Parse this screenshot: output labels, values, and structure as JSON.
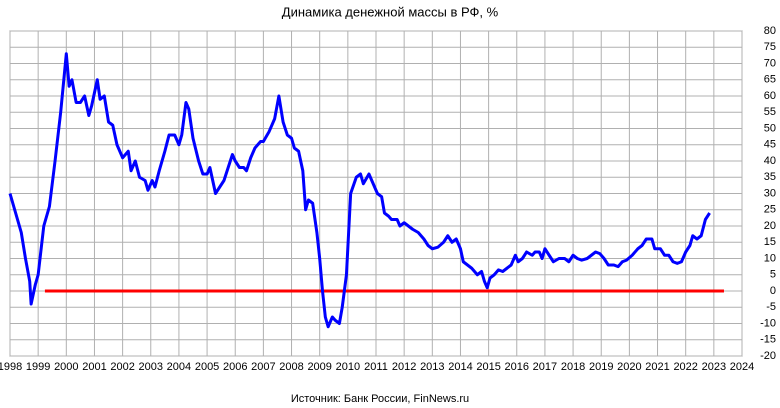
{
  "chart_data": {
    "type": "line",
    "title": "Динамика  денежной  массы в РФ, %",
    "source": "Источник:  Банк России, FinNews.ru",
    "x": [
      1998.0,
      1998.2,
      1998.4,
      1998.55,
      1998.7,
      1998.75,
      1998.9,
      1999.0,
      1999.2,
      1999.4,
      1999.6,
      1999.8,
      2000.0,
      2000.1,
      2000.2,
      2000.35,
      2000.5,
      2000.65,
      2000.8,
      2000.9,
      2001.1,
      2001.2,
      2001.35,
      2001.5,
      2001.65,
      2001.8,
      2002.0,
      2002.2,
      2002.3,
      2002.45,
      2002.6,
      2002.8,
      2002.9,
      2003.05,
      2003.15,
      2003.3,
      2003.5,
      2003.65,
      2003.85,
      2004.0,
      2004.1,
      2004.25,
      2004.35,
      2004.5,
      2004.7,
      2004.85,
      2005.0,
      2005.1,
      2005.2,
      2005.3,
      2005.45,
      2005.6,
      2005.75,
      2005.9,
      2006.0,
      2006.15,
      2006.3,
      2006.4,
      2006.55,
      2006.7,
      2006.9,
      2007.0,
      2007.2,
      2007.4,
      2007.55,
      2007.7,
      2007.85,
      2008.0,
      2008.1,
      2008.25,
      2008.4,
      2008.5,
      2008.6,
      2008.75,
      2008.9,
      2009.0,
      2009.1,
      2009.2,
      2009.3,
      2009.45,
      2009.55,
      2009.7,
      2009.8,
      2009.95,
      2010.1,
      2010.3,
      2010.45,
      2010.55,
      2010.75,
      2010.9,
      2011.05,
      2011.2,
      2011.3,
      2011.45,
      2011.55,
      2011.75,
      2011.85,
      2012.0,
      2012.15,
      2012.3,
      2012.5,
      2012.7,
      2012.85,
      2013.0,
      2013.2,
      2013.4,
      2013.55,
      2013.7,
      2013.85,
      2014.0,
      2014.1,
      2014.25,
      2014.4,
      2014.6,
      2014.75,
      2014.85,
      2014.95,
      2015.05,
      2015.2,
      2015.35,
      2015.5,
      2015.65,
      2015.8,
      2015.95,
      2016.05,
      2016.2,
      2016.35,
      2016.55,
      2016.65,
      2016.8,
      2016.9,
      2017.0,
      2017.15,
      2017.3,
      2017.5,
      2017.7,
      2017.85,
      2018.0,
      2018.15,
      2018.3,
      2018.5,
      2018.65,
      2018.8,
      2018.95,
      2019.1,
      2019.25,
      2019.45,
      2019.6,
      2019.75,
      2019.9,
      2020.1,
      2020.3,
      2020.45,
      2020.6,
      2020.8,
      2020.9,
      2021.1,
      2021.25,
      2021.4,
      2021.55,
      2021.7,
      2021.85,
      2022.0,
      2022.15,
      2022.25,
      2022.4,
      2022.55,
      2022.7,
      2022.85
    ],
    "values": [
      30,
      24,
      18,
      10,
      3,
      -4,
      2,
      5,
      20,
      26,
      40,
      55,
      73,
      63,
      65,
      58,
      58,
      60,
      54,
      57,
      65,
      59,
      60,
      52,
      51,
      45,
      41,
      43,
      37,
      40,
      35,
      34,
      31,
      34,
      32,
      37,
      43,
      48,
      48,
      45,
      48,
      58,
      56,
      47,
      40,
      36,
      36,
      38,
      34,
      30,
      32,
      34,
      38,
      42,
      40,
      38,
      38,
      37,
      41,
      44,
      46,
      46,
      49,
      53,
      60,
      52,
      48,
      47,
      44,
      43,
      37,
      25,
      28,
      27,
      18,
      10,
      0,
      -8,
      -11,
      -8,
      -9,
      -10,
      -5,
      5,
      30,
      35,
      36,
      33,
      36,
      33,
      30,
      29,
      24,
      23,
      22,
      22,
      20,
      21,
      20,
      19,
      18,
      16,
      14,
      13,
      13.5,
      15,
      17,
      15,
      16,
      13,
      9,
      8,
      7,
      5,
      6,
      3,
      1,
      4,
      5,
      6.5,
      6,
      7,
      8,
      11,
      9,
      10,
      12,
      11,
      12,
      12,
      10,
      13,
      11,
      9,
      10,
      10,
      9,
      11,
      10,
      9.5,
      10,
      11,
      12,
      11.5,
      10,
      8,
      8,
      7.5,
      9,
      9.5,
      11,
      13,
      14,
      16,
      16,
      13,
      13,
      11,
      11,
      9,
      8.5,
      9,
      12,
      14,
      17,
      16,
      17,
      22,
      24
    ],
    "color": "#0000ff",
    "hline": {
      "value": 0,
      "color": "#ff0000",
      "x": [
        1999.24,
        2023.36
      ]
    },
    "xlim": [
      1998,
      2024
    ],
    "xticks": [
      1998,
      1999,
      2000,
      2001,
      2002,
      2003,
      2004,
      2005,
      2006,
      2007,
      2008,
      2009,
      2010,
      2011,
      2012,
      2013,
      2014,
      2015,
      2016,
      2017,
      2018,
      2019,
      2020,
      2021,
      2022,
      2023,
      2024
    ],
    "ylim": [
      -20,
      80
    ],
    "yticks": [
      -20,
      -15,
      -10,
      -5,
      0,
      5,
      10,
      15,
      20,
      25,
      30,
      35,
      40,
      45,
      50,
      55,
      60,
      65,
      70,
      75,
      80
    ],
    "grid": true
  }
}
